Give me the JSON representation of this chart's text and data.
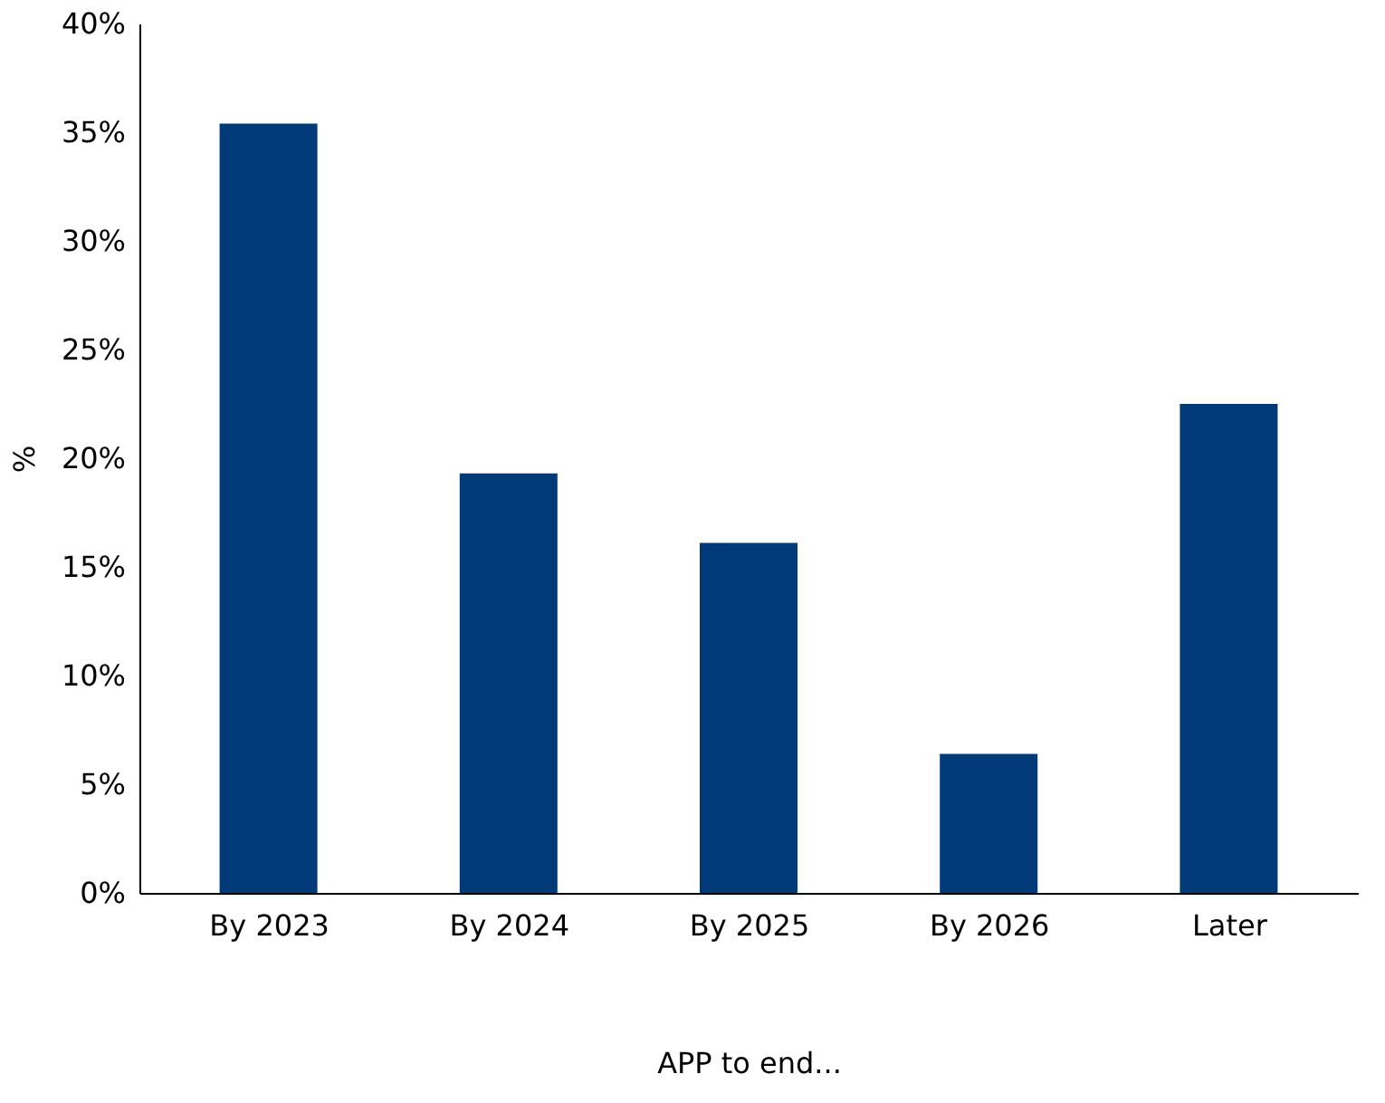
{
  "chart_data": {
    "type": "bar",
    "xlabel": "APP to end...",
    "ylabel": "%",
    "categories": [
      "By 2023",
      "By 2024",
      "By 2025",
      "By 2026",
      "Later"
    ],
    "values": [
      35.4,
      19.3,
      16.1,
      6.4,
      22.5
    ],
    "color": "#003a78",
    "ylim": [
      0,
      40
    ],
    "yticks": [
      {
        "value": 0,
        "label": "0%"
      },
      {
        "value": 5,
        "label": "5%"
      },
      {
        "value": 10,
        "label": "10%"
      },
      {
        "value": 15,
        "label": "15%"
      },
      {
        "value": 20,
        "label": "20%"
      },
      {
        "value": 25,
        "label": "25%"
      },
      {
        "value": 30,
        "label": "30%"
      },
      {
        "value": 35,
        "label": "35%"
      },
      {
        "value": 40,
        "label": "40%"
      }
    ],
    "grid": false
  }
}
